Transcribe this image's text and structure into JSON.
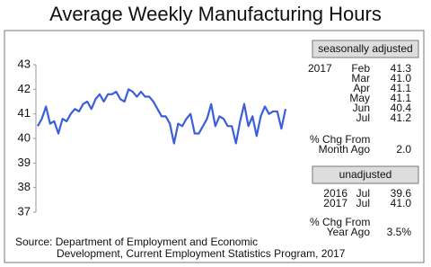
{
  "chart_data": {
    "type": "line",
    "title": "Average Weekly Manufacturing Hours",
    "values": [
      40.5,
      40.8,
      41.3,
      40.6,
      40.7,
      40.2,
      40.8,
      40.7,
      41.0,
      41.2,
      41.1,
      41.4,
      41.5,
      41.2,
      41.6,
      41.8,
      41.5,
      41.8,
      41.8,
      41.9,
      41.6,
      41.5,
      42.0,
      41.9,
      41.7,
      41.9,
      41.7,
      41.7,
      41.5,
      41.2,
      40.9,
      40.9,
      40.6,
      39.8,
      40.6,
      40.5,
      40.8,
      41.0,
      40.2,
      40.2,
      40.5,
      40.8,
      41.4,
      40.5,
      40.9,
      40.8,
      40.5,
      40.5,
      39.8,
      40.7,
      41.4,
      40.5,
      40.9,
      40.1,
      40.9,
      41.3,
      41.0,
      41.1,
      41.1,
      40.4,
      41.2
    ],
    "color": "#3b5fdc",
    "ylim": [
      37,
      43
    ],
    "yticks": [
      37,
      38,
      39,
      40,
      41,
      42,
      43
    ]
  },
  "side_panel": {
    "seasonally_adjusted": {
      "header": "seasonally adjusted",
      "year": "2017",
      "rows": [
        [
          "Feb",
          "41.3"
        ],
        [
          "Mar",
          "41.0"
        ],
        [
          "Apr",
          "41.1"
        ],
        [
          "May",
          "41.1"
        ],
        [
          "Jun",
          "40.4"
        ],
        [
          "Jul",
          "41.2"
        ]
      ]
    },
    "month_change": {
      "label": [
        "% Chg From",
        "Month Ago"
      ],
      "value": "2.0"
    },
    "unadjusted": {
      "header": "unadjusted",
      "rows": [
        [
          "2016",
          "Jul",
          "39.6"
        ],
        [
          "2017",
          "Jul",
          "41.0"
        ]
      ]
    },
    "year_change": {
      "label": [
        "% Chg From",
        "Year Ago"
      ],
      "value": "3.5%"
    }
  },
  "source": [
    "Source:  Department of Employment and Economic",
    "Development, Current Employment Statistics Program, 2017"
  ]
}
